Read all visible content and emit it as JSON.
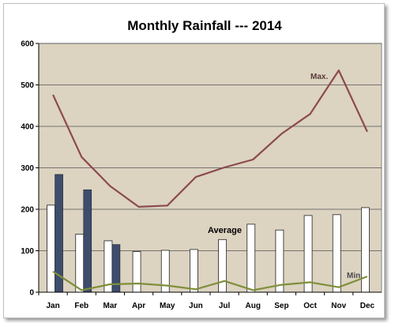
{
  "chart_data": {
    "type": "bar",
    "title": "Monthly Rainfall --- 2014",
    "categories": [
      "Jan",
      "Feb",
      "Mar",
      "Apr",
      "May",
      "Jun",
      "Jul",
      "Aug",
      "Sep",
      "Oct",
      "Nov",
      "Dec"
    ],
    "ylim": [
      0,
      600
    ],
    "yticks": [
      "0",
      "100",
      "200",
      "300",
      "400",
      "500",
      "600"
    ],
    "grid": true,
    "colors": {
      "plot_bg": "#dcd3c1",
      "average_bar": "#ffffff",
      "actual_bar": "#3d4d6b",
      "max_line": "#8c4a4f",
      "min_line": "#7f8f3a"
    },
    "series": [
      {
        "kind": "bar",
        "values": [
          210,
          140,
          124,
          98,
          101,
          103,
          127,
          164,
          150,
          185,
          187,
          204
        ]
      },
      {
        "kind": "bar",
        "values": [
          284,
          247,
          115,
          null,
          null,
          null,
          null,
          null,
          null,
          null,
          null,
          null
        ]
      },
      {
        "kind": "line",
        "values": [
          476,
          326,
          256,
          206,
          209,
          278,
          301,
          320,
          382,
          430,
          535,
          387
        ]
      },
      {
        "kind": "line",
        "values": [
          50,
          5,
          19,
          21,
          16,
          7,
          27,
          5,
          18,
          24,
          12,
          38
        ]
      }
    ],
    "annotations": {
      "max": "Max.",
      "average": "Average",
      "min": "Min."
    }
  }
}
